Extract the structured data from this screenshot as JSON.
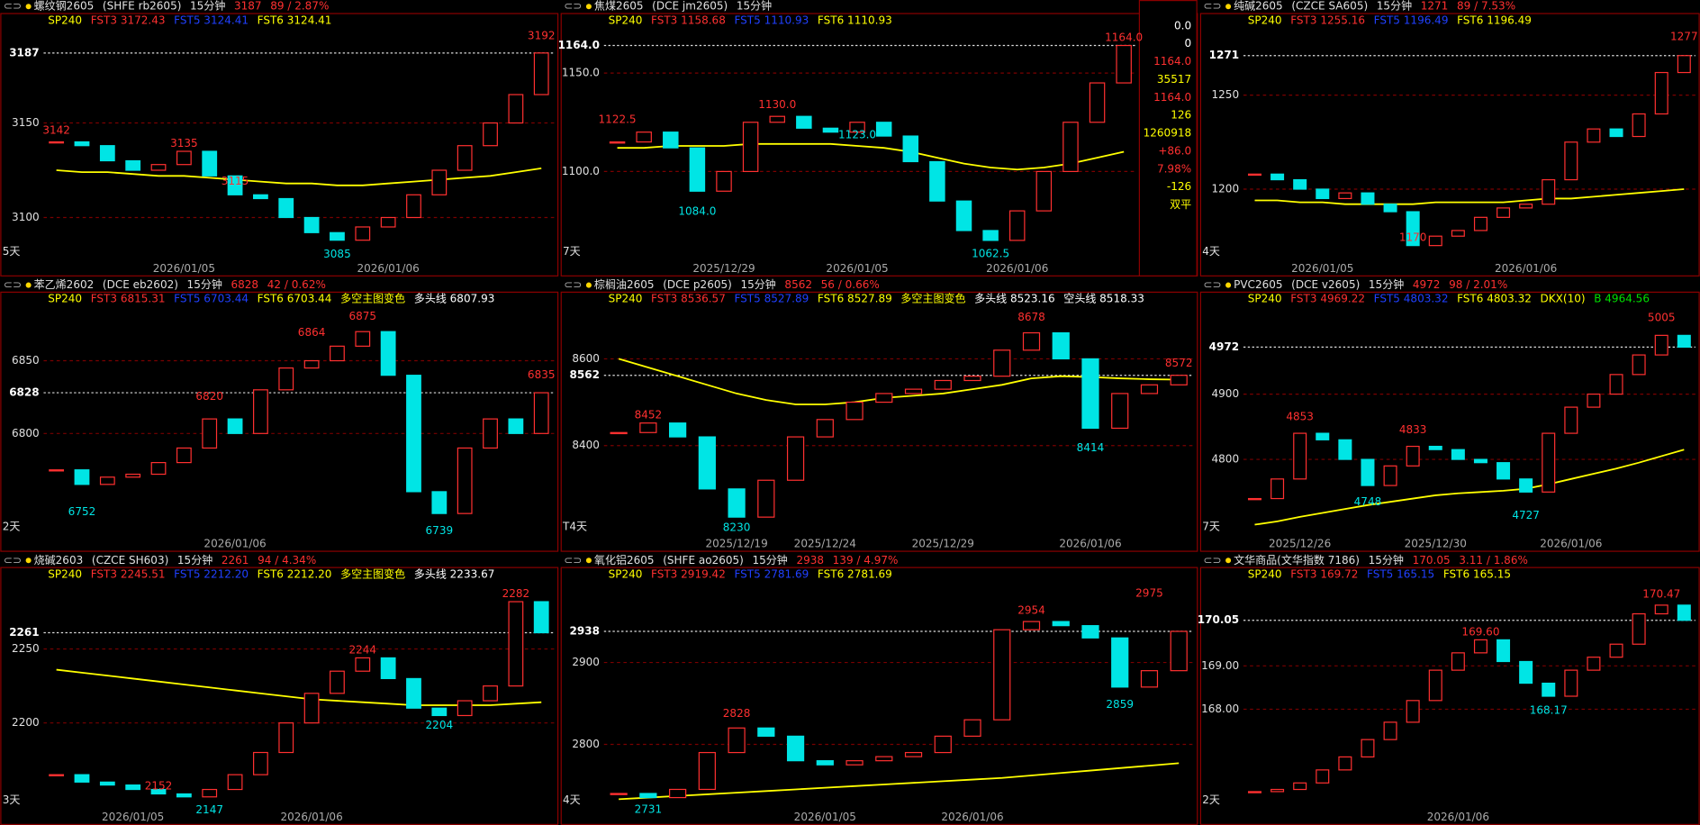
{
  "chart_data": [
    {
      "type": "candlestick",
      "name": "螺纹钢2605",
      "code": "(SHFE rb2605)",
      "period": "15分钟",
      "price": 3187,
      "change": "89 / 2.87%",
      "legend": [
        {
          "text": "SP240",
          "color": "#ffff00"
        },
        {
          "text": "FST3 3172.43",
          "color": "#ff3030"
        },
        {
          "text": "FST5 3124.41",
          "color": "#2040ff"
        },
        {
          "text": "FST6 3124.41",
          "color": "#ffff00"
        }
      ],
      "ylim": [
        3078,
        3207
      ],
      "yticks": [
        3100,
        3150
      ],
      "span": "5天",
      "categories": [
        null,
        null,
        null,
        null,
        null,
        "2026/01/05",
        null,
        null,
        null,
        null,
        null,
        null,
        null,
        "2026/01/06",
        null,
        null,
        null,
        null,
        null,
        null
      ],
      "closes": [
        3140,
        3138,
        3130,
        3125,
        3128,
        3135,
        3122,
        3112,
        3110,
        3100,
        3092,
        3088,
        3095,
        3100,
        3112,
        3125,
        3138,
        3150,
        3165,
        3187
      ],
      "sp240": [
        3125,
        3124,
        3124,
        3123,
        3122,
        3122,
        3121,
        3120,
        3119,
        3118,
        3118,
        3117,
        3117,
        3118,
        3119,
        3120,
        3121,
        3122,
        3124,
        3126
      ],
      "annotations": [
        {
          "at": 0,
          "value": 3142
        },
        {
          "at": 5,
          "value": 3135
        },
        {
          "at": 7,
          "value": 3115
        },
        {
          "at": 11,
          "value": 3085
        },
        {
          "at": 19,
          "value": 3192
        }
      ]
    },
    {
      "type": "candlestick",
      "name": "焦煤2605",
      "code": "(DCE jm2605)",
      "period": "15分钟",
      "price": {
        "value": 1164,
        "label": "1164.0"
      },
      "legend": [
        {
          "text": "SP240",
          "color": "#ffff00"
        },
        {
          "text": "FST3 1158.68",
          "color": "#ff3030"
        },
        {
          "text": "FST5 1110.93",
          "color": "#2040ff"
        },
        {
          "text": "FST6 1110.93",
          "color": "#ffff00"
        }
      ],
      "ylim": [
        1055.5,
        1179.4
      ],
      "yticks": [
        {
          "value": 1100,
          "label": "1100.0"
        },
        {
          "value": 1150,
          "label": "1150.0"
        }
      ],
      "span": "7天",
      "categories": [
        null,
        null,
        null,
        null,
        "2025/12/29",
        null,
        null,
        null,
        null,
        "2026/01/05",
        null,
        null,
        null,
        null,
        null,
        "2026/01/06",
        null,
        null,
        null,
        null
      ],
      "closes": [
        1115,
        1120,
        1112,
        1090,
        1100,
        1125,
        1128,
        1122,
        1120,
        1125,
        1118,
        1105,
        1085,
        1070,
        1065,
        1080,
        1100,
        1125,
        1145,
        1164
      ],
      "sp240": [
        1112,
        1112,
        1113,
        1113,
        1113,
        1114,
        1114,
        1114,
        1114,
        1113,
        1112,
        1110,
        1107,
        1104,
        1102,
        1101,
        1102,
        1104,
        1107,
        1110
      ],
      "annotations": [
        {
          "at": 0,
          "value": 1122.5
        },
        {
          "at": 3,
          "value": 1084,
          "label": "1084.0"
        },
        {
          "at": 6,
          "value": 1130,
          "label": "1130.0"
        },
        {
          "at": 9,
          "value": 1123,
          "label": "1123.0"
        },
        {
          "at": 14,
          "value": 1062.5
        },
        {
          "at": 19,
          "value": 1164,
          "label": "1164.0"
        }
      ],
      "info_box": [
        {
          "text": "0.0",
          "color": "#ffffff"
        },
        {
          "text": "0",
          "color": "#ffffff"
        },
        {
          "text": "1164.0",
          "color": "#ff3030"
        },
        {
          "text": "35517",
          "color": "#ffff00"
        },
        {
          "text": "1164.0",
          "color": "#ff3030"
        },
        {
          "text": "126",
          "color": "#ffff00"
        },
        {
          "text": "1260918",
          "color": "#ffff00"
        },
        {
          "text": "+86.0",
          "color": "#ff3030"
        },
        {
          "text": "7.98%",
          "color": "#ff3030"
        },
        {
          "text": "-126",
          "color": "#ffff00"
        },
        {
          "text": "双平",
          "color": "#ffff00"
        }
      ]
    },
    {
      "type": "candlestick",
      "name": "纯碱2605",
      "code": "(CZCE SA605)",
      "period": "15分钟",
      "price": 1271,
      "change": "89 / 7.53%",
      "legend": [
        {
          "text": "SP240",
          "color": "#ffff00"
        },
        {
          "text": "FST3 1255.16",
          "color": "#ff3030"
        },
        {
          "text": "FST5 1196.49",
          "color": "#2040ff"
        },
        {
          "text": "FST6 1196.49",
          "color": "#ffff00"
        }
      ],
      "ylim": [
        1162.8,
        1292.5
      ],
      "yticks": [
        1200,
        1250
      ],
      "span": "4天",
      "categories": [
        null,
        null,
        null,
        "2026/01/05",
        null,
        null,
        null,
        null,
        null,
        null,
        null,
        null,
        "2026/01/06",
        null,
        null,
        null,
        null,
        null,
        null,
        null
      ],
      "closes": [
        1208,
        1205,
        1200,
        1195,
        1198,
        1192,
        1188,
        1170,
        1175,
        1178,
        1185,
        1190,
        1192,
        1205,
        1225,
        1232,
        1228,
        1240,
        1262,
        1271
      ],
      "sp240": [
        1194,
        1194,
        1193,
        1193,
        1192,
        1192,
        1192,
        1192,
        1193,
        1193,
        1193,
        1193,
        1194,
        1195,
        1195,
        1196,
        1197,
        1198,
        1199,
        1200
      ],
      "annotations": [
        {
          "at": 7,
          "value": 1170
        },
        {
          "at": 19,
          "value": 1277
        }
      ]
    },
    {
      "type": "candlestick",
      "name": "苯乙烯2602",
      "code": "(DCE eb2602)",
      "period": "15分钟",
      "price": 6828,
      "change": "42 / 0.62%",
      "legend": [
        {
          "text": "SP240",
          "color": "#ffff00"
        },
        {
          "text": "FST3 6815.31",
          "color": "#ff3030"
        },
        {
          "text": "FST5 6703.44",
          "color": "#2040ff"
        },
        {
          "text": "FST6 6703.44",
          "color": "#ffff00"
        },
        {
          "text": "多空主图变色",
          "color": "#ffff00"
        },
        {
          "text": "多头线 6807.93",
          "color": "#ffffff"
        }
      ],
      "ylim": [
        6730.6,
        6896
      ],
      "yticks": [
        6800,
        6850
      ],
      "span": "2天",
      "categories": [
        null,
        null,
        null,
        null,
        null,
        null,
        null,
        "2026/01/06",
        null,
        null,
        null,
        null,
        null,
        null,
        null,
        null,
        null,
        null,
        null,
        null
      ],
      "closes": [
        6775,
        6765,
        6770,
        6772,
        6780,
        6790,
        6810,
        6800,
        6830,
        6845,
        6850,
        6860,
        6870,
        6840,
        6760,
        6745,
        6790,
        6810,
        6800,
        6828
      ],
      "annotations": [
        {
          "at": 1,
          "value": 6752
        },
        {
          "at": 6,
          "value": 6820
        },
        {
          "at": 10,
          "value": 6864
        },
        {
          "at": 12,
          "value": 6875
        },
        {
          "at": 15,
          "value": 6739
        },
        {
          "at": 19,
          "value": 6835
        }
      ]
    },
    {
      "type": "candlestick",
      "name": "棕榈油2605",
      "code": "(DCE p2605)",
      "period": "15分钟",
      "price": 8562,
      "change": "56 / 0.66%",
      "legend": [
        {
          "text": "SP240",
          "color": "#ffff00"
        },
        {
          "text": "FST3 8536.57",
          "color": "#ff3030"
        },
        {
          "text": "FST5 8527.89",
          "color": "#2040ff"
        },
        {
          "text": "FST6 8527.89",
          "color": "#ffff00"
        },
        {
          "text": "多空主图变色",
          "color": "#ffff00"
        },
        {
          "text": "多头线 8523.16",
          "color": "#ffffff"
        },
        {
          "text": "空头线 8518.33",
          "color": "#ffffff"
        }
      ],
      "ylim": [
        8195,
        8750
      ],
      "yticks": [
        8400,
        8600
      ],
      "span": "T4天",
      "categories": [
        null,
        null,
        null,
        null,
        "2025/12/19",
        null,
        null,
        "2025/12/24",
        null,
        null,
        null,
        "2025/12/29",
        null,
        null,
        null,
        null,
        "2026/01/06",
        null,
        null,
        null
      ],
      "closes": [
        8430,
        8452,
        8420,
        8300,
        8235,
        8320,
        8420,
        8460,
        8500,
        8520,
        8530,
        8550,
        8560,
        8620,
        8660,
        8600,
        8440,
        8520,
        8540,
        8562
      ],
      "sp240": [
        8600,
        8580,
        8560,
        8540,
        8520,
        8505,
        8495,
        8495,
        8500,
        8510,
        8515,
        8520,
        8530,
        8540,
        8555,
        8560,
        8558,
        8555,
        8553,
        8552
      ],
      "annotations": [
        {
          "at": 1,
          "value": 8452
        },
        {
          "at": 4,
          "value": 8230
        },
        {
          "at": 14,
          "value": 8678
        },
        {
          "at": 16,
          "value": 8414
        },
        {
          "at": 19,
          "value": 8572
        }
      ]
    },
    {
      "type": "candlestick",
      "name": "PVC2605",
      "code": "(DCE v2605)",
      "period": "15分钟",
      "price": 4972,
      "change": "98 / 2.01%",
      "legend": [
        {
          "text": "SP240",
          "color": "#ffff00"
        },
        {
          "text": "FST3 4969.22",
          "color": "#ff3030"
        },
        {
          "text": "FST5 4803.32",
          "color": "#2040ff"
        },
        {
          "text": "FST6 4803.32",
          "color": "#ffff00"
        },
        {
          "text": "DKX(10)",
          "color": "#ffff00"
        },
        {
          "text": "B 4964.56",
          "color": "#00e000"
        }
      ],
      "ylim": [
        4685,
        5053.7
      ],
      "yticks": [
        4800,
        4900
      ],
      "span": "7天",
      "categories": [
        null,
        null,
        "2025/12/26",
        null,
        null,
        null,
        null,
        null,
        "2025/12/30",
        null,
        null,
        null,
        null,
        null,
        "2026/01/06",
        null,
        null,
        null,
        null,
        null
      ],
      "closes": [
        4740,
        4770,
        4840,
        4830,
        4800,
        4760,
        4790,
        4820,
        4815,
        4800,
        4795,
        4770,
        4750,
        4840,
        4880,
        4900,
        4930,
        4960,
        4990,
        4972
      ],
      "sp240": [
        4700,
        4705,
        4712,
        4718,
        4724,
        4730,
        4735,
        4740,
        4745,
        4748,
        4750,
        4752,
        4755,
        4762,
        4770,
        4778,
        4786,
        4795,
        4805,
        4815
      ],
      "annotations": [
        {
          "at": 2,
          "value": 4853
        },
        {
          "at": 5,
          "value": 4748
        },
        {
          "at": 7,
          "value": 4833
        },
        {
          "at": 12,
          "value": 4727
        },
        {
          "at": 18,
          "value": 5005
        }
      ]
    },
    {
      "type": "candlestick",
      "name": "烧碱2603",
      "code": "(CZCE SH603)",
      "period": "15分钟",
      "price": 2261,
      "change": "94 / 4.34%",
      "legend": [
        {
          "text": "SP240",
          "color": "#ffff00"
        },
        {
          "text": "FST3 2245.51",
          "color": "#ff3030"
        },
        {
          "text": "FST5 2212.20",
          "color": "#2040ff"
        },
        {
          "text": "FST6 2212.20",
          "color": "#ffff00"
        },
        {
          "text": "多空主图变色",
          "color": "#ffff00"
        },
        {
          "text": "多头线 2233.67",
          "color": "#ffffff"
        }
      ],
      "ylim": [
        2142.7,
        2304
      ],
      "yticks": [
        2200,
        2250
      ],
      "span": "3天",
      "categories": [
        null,
        null,
        null,
        "2026/01/05",
        null,
        null,
        null,
        null,
        null,
        null,
        "2026/01/06",
        null,
        null,
        null,
        null,
        null,
        null,
        null,
        null,
        null
      ],
      "closes": [
        2165,
        2160,
        2158,
        2155,
        2152,
        2150,
        2155,
        2165,
        2180,
        2200,
        2220,
        2235,
        2244,
        2230,
        2210,
        2205,
        2215,
        2225,
        2282,
        2261
      ],
      "sp240": [
        2236,
        2234,
        2232,
        2230,
        2228,
        2226,
        2224,
        2222,
        2220,
        2218,
        2216,
        2215,
        2214,
        2213,
        2212,
        2212,
        2212,
        2212,
        2213,
        2214
      ],
      "annotations": [
        {
          "at": 4,
          "value": 2152
        },
        {
          "at": 6,
          "value": 2147
        },
        {
          "at": 12,
          "value": 2244
        },
        {
          "at": 15,
          "value": 2204
        },
        {
          "at": 18,
          "value": 2282
        }
      ]
    },
    {
      "type": "candlestick",
      "name": "氧化铝2605",
      "code": "(SHFE ao2605)",
      "period": "15分钟",
      "price": 2938,
      "change": "139 / 4.97%",
      "legend": [
        {
          "text": "SP240",
          "color": "#ffff00"
        },
        {
          "text": "FST3 2919.42",
          "color": "#ff3030"
        },
        {
          "text": "FST5 2781.69",
          "color": "#2040ff"
        },
        {
          "text": "FST6 2781.69",
          "color": "#ffff00"
        }
      ],
      "ylim": [
        2722.7,
        3014
      ],
      "yticks": [
        2800,
        2900
      ],
      "span": "4天",
      "categories": [
        null,
        null,
        null,
        null,
        null,
        null,
        null,
        "2026/01/05",
        null,
        null,
        null,
        null,
        "2026/01/06",
        null,
        null,
        null,
        null,
        null,
        null,
        null
      ],
      "closes": [
        2740,
        2735,
        2745,
        2790,
        2820,
        2810,
        2780,
        2775,
        2780,
        2785,
        2790,
        2810,
        2830,
        2940,
        2950,
        2945,
        2930,
        2870,
        2890,
        2938
      ],
      "sp240": [
        2733,
        2735,
        2737,
        2739,
        2741,
        2743,
        2745,
        2747,
        2749,
        2751,
        2753,
        2755,
        2757,
        2759,
        2762,
        2765,
        2768,
        2771,
        2774,
        2777
      ],
      "annotations": [
        {
          "at": 1,
          "value": 2731
        },
        {
          "at": 4,
          "value": 2828
        },
        {
          "at": 14,
          "value": 2954
        },
        {
          "at": 17,
          "value": 2859
        },
        {
          "at": 18,
          "value": 2975
        }
      ]
    },
    {
      "type": "candlestick",
      "name": "文华商品(文华指数 7186)",
      "code": "",
      "period": "15分钟",
      "price": 170.05,
      "change": "3.11 / 1.86%",
      "legend": [
        {
          "text": "SP240",
          "color": "#ffff00"
        },
        {
          "text": "FST3 169.72",
          "color": "#ff3030"
        },
        {
          "text": "FST5 165.15",
          "color": "#2040ff"
        },
        {
          "text": "FST6 165.15",
          "color": "#ffff00"
        }
      ],
      "ylim": [
        165.73,
        171.23
      ],
      "yticks": [
        {
          "value": 168,
          "label": "168.00"
        },
        {
          "value": 169,
          "label": "169.00"
        }
      ],
      "span": "2天",
      "categories": [
        null,
        null,
        null,
        null,
        null,
        null,
        null,
        null,
        null,
        "2026/01/06",
        null,
        null,
        null,
        null,
        null,
        null,
        null,
        null,
        null,
        null
      ],
      "closes": [
        166.1,
        166.15,
        166.3,
        166.6,
        166.9,
        167.3,
        167.7,
        168.2,
        168.9,
        169.3,
        169.6,
        169.1,
        168.6,
        168.3,
        168.9,
        169.2,
        169.5,
        170.2,
        170.4,
        170.05
      ],
      "annotations": [
        {
          "at": 10,
          "value": 169.6,
          "label": "169.60"
        },
        {
          "at": 13,
          "value": 168.17
        },
        {
          "at": 18,
          "value": 170.47
        }
      ]
    }
  ]
}
